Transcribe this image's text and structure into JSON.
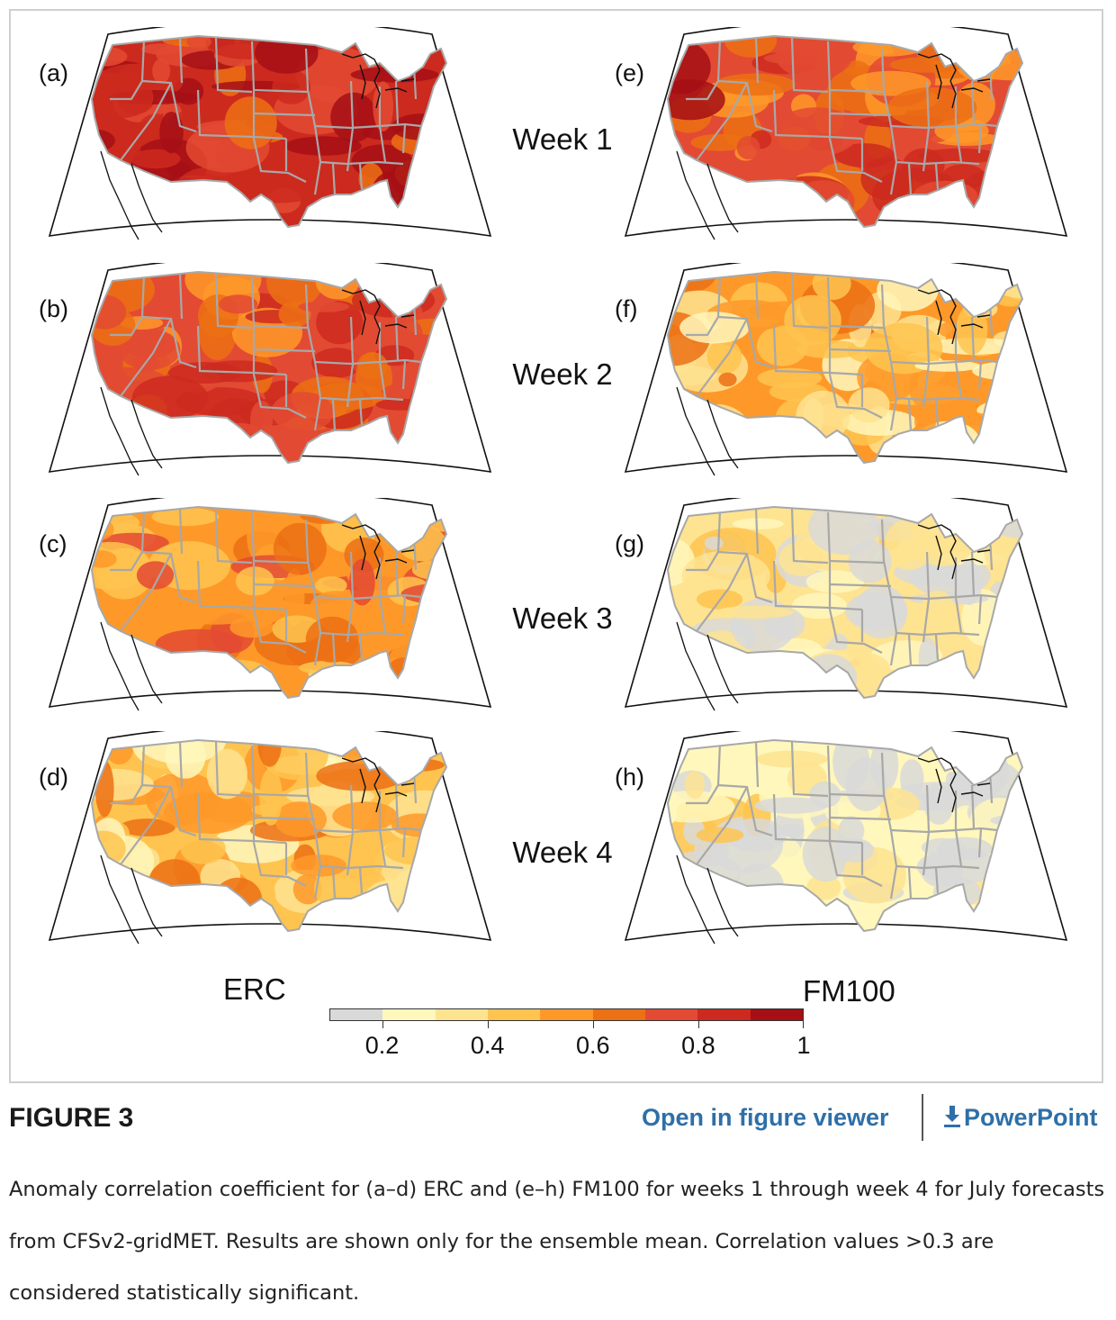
{
  "figure": {
    "panels": [
      {
        "label": "(a)",
        "variable": "ERC",
        "week": 1,
        "level": 0.85
      },
      {
        "label": "(b)",
        "variable": "ERC",
        "week": 2,
        "level": 0.7
      },
      {
        "label": "(c)",
        "variable": "ERC",
        "week": 3,
        "level": 0.58
      },
      {
        "label": "(d)",
        "variable": "ERC",
        "week": 4,
        "level": 0.47
      },
      {
        "label": "(e)",
        "variable": "FM100",
        "week": 1,
        "level": 0.78
      },
      {
        "label": "(f)",
        "variable": "FM100",
        "week": 2,
        "level": 0.5
      },
      {
        "label": "(g)",
        "variable": "FM100",
        "week": 3,
        "level": 0.32
      },
      {
        "label": "(h)",
        "variable": "FM100",
        "week": 4,
        "level": 0.27
      }
    ],
    "week_labels": [
      "Week 1",
      "Week 2",
      "Week 3",
      "Week 4"
    ],
    "column_labels": {
      "left": "ERC",
      "right": "FM100"
    },
    "colorbar": {
      "colors": [
        "#d9d9d9",
        "#fff7bc",
        "#fee391",
        "#fec44f",
        "#fe9929",
        "#ec7014",
        "#e34a33",
        "#cc2a1e",
        "#a50f15"
      ],
      "bounds": [
        0.1,
        1.0
      ],
      "ticks": [
        "0.2",
        "0.4",
        "0.6",
        "0.8",
        "1"
      ],
      "tick_values": [
        0.2,
        0.4,
        0.6,
        0.8,
        1.0
      ]
    }
  },
  "chart_data": {
    "type": "heatmap",
    "title": "Anomaly correlation coefficient, July forecasts, CFSv2-gridMET",
    "rows": [
      "Week 1",
      "Week 2",
      "Week 3",
      "Week 4"
    ],
    "columns": [
      "ERC",
      "FM100"
    ],
    "colorbar_range": [
      0.1,
      1.0
    ],
    "colorbar_ticks": [
      0.2,
      0.4,
      0.6,
      0.8,
      1
    ],
    "approx_mean_values": [
      [
        0.85,
        0.78
      ],
      [
        0.7,
        0.5
      ],
      [
        0.58,
        0.32
      ],
      [
        0.47,
        0.27
      ]
    ]
  },
  "header": {
    "title": "FIGURE 3",
    "viewer_link": "Open in figure viewer",
    "powerpoint_link": "PowerPoint"
  },
  "caption": {
    "text": "Anomaly correlation coefficient for (a–d) ERC and (e–h) FM100 for weeks 1 through week 4 for July forecasts from CFSv2-gridMET. Results are shown only for the ensemble mean. Correlation values >0.3 are considered statistically significant."
  },
  "colors": {
    "link": "#2e6fa8",
    "border": "#cfcfcf",
    "state_lines": "#a8a8a8"
  }
}
